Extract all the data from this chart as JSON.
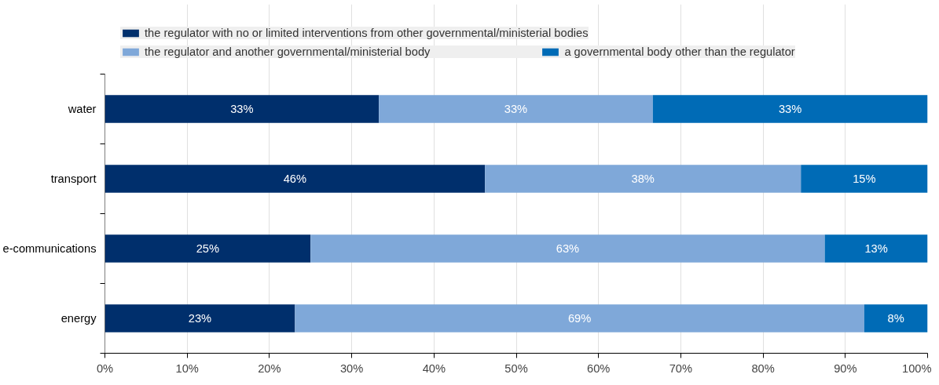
{
  "chart_data": {
    "type": "bar",
    "orientation": "horizontal",
    "stacked": true,
    "categories": [
      "water",
      "transport",
      "e-communications",
      "energy"
    ],
    "series": [
      {
        "name": "the regulator with no or limited interventions from other governmental/ministerial bodies",
        "color": "#002f6c",
        "values": [
          33.3,
          46.2,
          25,
          23.1
        ],
        "value_labels": [
          "33%",
          "46%",
          "25%",
          "23%"
        ]
      },
      {
        "name": "the regulator and another governmental/ministerial body",
        "color": "#7fa8d9",
        "values": [
          33.3,
          38.4,
          62.5,
          69.2
        ],
        "value_labels": [
          "33%",
          "38%",
          "63%",
          "69%"
        ]
      },
      {
        "name": "a governmental body other than the regulator",
        "color": "#006bb6",
        "values": [
          33.4,
          15.4,
          12.5,
          7.7
        ],
        "value_labels": [
          "33%",
          "15%",
          "13%",
          "8%"
        ]
      }
    ],
    "xlim": [
      0,
      100
    ],
    "xticks": [
      {
        "value": 0,
        "label": "0%"
      },
      {
        "value": 10,
        "label": "10%"
      },
      {
        "value": 20,
        "label": "20%"
      },
      {
        "value": 30,
        "label": "30%"
      },
      {
        "value": 40,
        "label": "40%"
      },
      {
        "value": 50,
        "label": "50%"
      },
      {
        "value": 60,
        "label": "60%"
      },
      {
        "value": 70,
        "label": "70%"
      },
      {
        "value": 80,
        "label": "80%"
      },
      {
        "value": 90,
        "label": "90%"
      },
      {
        "value": 100,
        "label": "100%"
      }
    ],
    "grid": "x",
    "legend": "top"
  }
}
